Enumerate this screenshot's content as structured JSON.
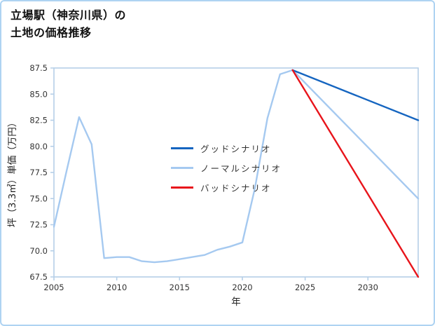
{
  "title": {
    "line1": "立場駅（神奈川県）の",
    "line2": "土地の価格推移"
  },
  "chart_data": {
    "type": "line",
    "title": "立場駅（神奈川県）の土地の価格推移",
    "xlabel": "年",
    "ylabel": "坪（3.3㎡）単価（万円）",
    "xlim": [
      2005,
      2034
    ],
    "ylim": [
      67.5,
      87.5
    ],
    "xticks": [
      2005,
      2010,
      2015,
      2020,
      2025,
      2030
    ],
    "yticks": [
      67.5,
      70.0,
      72.5,
      75.0,
      77.5,
      80.0,
      82.5,
      85.0,
      87.5
    ],
    "grid": false,
    "legend_position": "center",
    "colors": {
      "spine": "#b5cfe8",
      "tick_label": "#333333",
      "axis_label": "#222222",
      "page_border": "#aed3f2"
    },
    "series": [
      {
        "name": "グッドシナリオ",
        "color": "#1565c0",
        "x": [
          2024,
          2034
        ],
        "y": [
          87.3,
          82.5
        ]
      },
      {
        "name": "ノーマルシナリオ",
        "color": "#a5c9f0",
        "x": [
          2005,
          2006,
          2007,
          2008,
          2009,
          2010,
          2011,
          2012,
          2013,
          2014,
          2015,
          2016,
          2017,
          2018,
          2019,
          2020,
          2021,
          2022,
          2023,
          2024,
          2034
        ],
        "y": [
          72.3,
          77.6,
          82.8,
          80.2,
          69.3,
          69.4,
          69.4,
          69.0,
          68.9,
          69.0,
          69.2,
          69.4,
          69.6,
          70.1,
          70.4,
          70.8,
          76.0,
          82.7,
          86.9,
          87.3,
          75.0
        ]
      },
      {
        "name": "バッドシナリオ",
        "color": "#e8141b",
        "x": [
          2024,
          2034
        ],
        "y": [
          87.3,
          67.5
        ]
      }
    ]
  }
}
